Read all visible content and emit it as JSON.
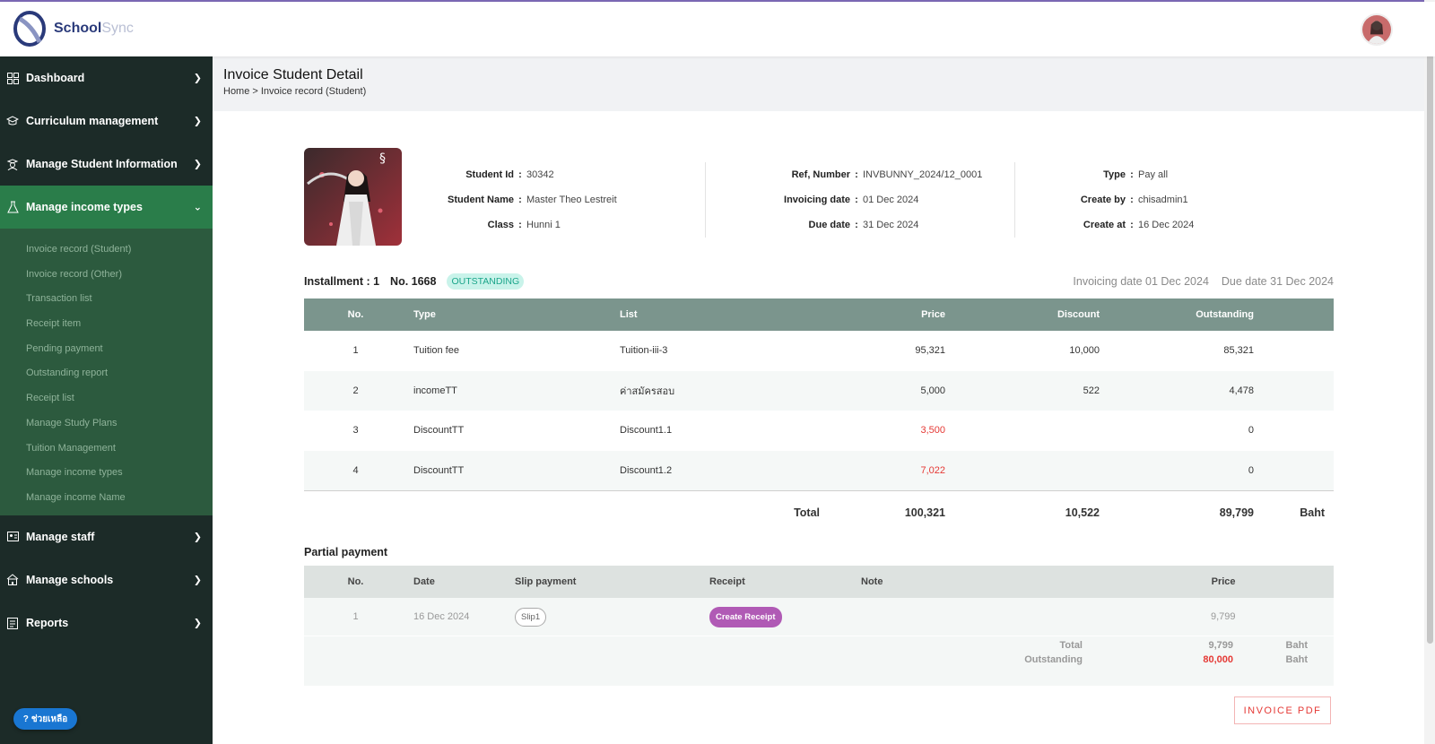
{
  "app": {
    "brand_primary": "School",
    "brand_secondary": "Sync"
  },
  "colors": {
    "sidebar_bg": "#1c2b28",
    "sidebar_active": "#2a7d4a",
    "table_header": "#7b958d",
    "badge": "#1aa58a",
    "danger": "#e53935",
    "receipt_button": "#b05ab5"
  },
  "sidebar": {
    "items_top": [
      {
        "label": "Dashboard",
        "icon": "grid-icon"
      },
      {
        "label": "Curriculum management",
        "icon": "graduation-cap-icon"
      },
      {
        "label": "Manage Student Information",
        "icon": "student-icon"
      },
      {
        "label": "Manage income types",
        "icon": "flask-icon"
      }
    ],
    "submenu": [
      "Invoice record (Student)",
      "Invoice record (Other)",
      "Transaction list",
      "Receipt item",
      "Pending payment",
      "Outstanding report",
      "Receipt list",
      "Manage Study Plans",
      "Tuition Management",
      "Manage income types",
      "Manage income Name"
    ],
    "items_bottom": [
      {
        "label": "Manage staff",
        "icon": "staff-icon"
      },
      {
        "label": "Manage schools",
        "icon": "school-icon"
      },
      {
        "label": "Reports",
        "icon": "report-icon"
      }
    ],
    "help_label": "ช่วยเหลือ"
  },
  "page": {
    "title": "Invoice Student Detail",
    "breadcrumb": "Home > Invoice record (Student)"
  },
  "student": {
    "col1": [
      {
        "label": "Student Id",
        "value": "30342"
      },
      {
        "label": "Student Name",
        "value": "Master Theo Lestreit"
      },
      {
        "label": "Class",
        "value": "Hunni 1"
      }
    ],
    "col2": [
      {
        "label": "Ref, Number",
        "value": "INVBUNNY_2024/12_0001"
      },
      {
        "label": "Invoicing date",
        "value": "01 Dec 2024"
      },
      {
        "label": "Due date",
        "value": "31 Dec 2024"
      }
    ],
    "col3": [
      {
        "label": "Type",
        "value": "Pay all"
      },
      {
        "label": "Create by",
        "value": "chisadmin1"
      },
      {
        "label": "Create at",
        "value": "16 Dec 2024"
      }
    ]
  },
  "installment": {
    "label": "Installment : 1",
    "number": "No. 1668",
    "status": "OUTSTANDING",
    "invoicing_date": "Invoicing date 01 Dec 2024",
    "due_date": "Due date 31 Dec 2024"
  },
  "invoice_table": {
    "headers": {
      "no": "No.",
      "type": "Type",
      "list": "List",
      "price": "Price",
      "discount": "Discount",
      "outstanding": "Outstanding"
    },
    "rows": [
      {
        "no": "1",
        "type": "Tuition fee",
        "list": "Tuition-iii-3",
        "price": "95,321",
        "discount": "10,000",
        "outstanding": "85,321",
        "price_red": false
      },
      {
        "no": "2",
        "type": "incomeTT",
        "list": "ค่าสมัครสอบ",
        "price": "5,000",
        "discount": "522",
        "outstanding": "4,478",
        "price_red": false
      },
      {
        "no": "3",
        "type": "DiscountTT",
        "list": "Discount1.1",
        "price": "3,500",
        "discount": "",
        "outstanding": "0",
        "price_red": true
      },
      {
        "no": "4",
        "type": "DiscountTT",
        "list": "Discount1.2",
        "price": "7,022",
        "discount": "",
        "outstanding": "0",
        "price_red": true
      }
    ],
    "total": {
      "label": "Total",
      "price": "100,321",
      "discount": "10,522",
      "outstanding": "89,799",
      "unit": "Baht"
    }
  },
  "partial": {
    "title": "Partial payment",
    "headers": {
      "no": "No.",
      "date": "Date",
      "slip": "Slip payment",
      "receipt": "Receipt",
      "note": "Note",
      "price": "Price"
    },
    "rows": [
      {
        "no": "1",
        "date": "16 Dec 2024",
        "slip": "Slip1",
        "receipt": "Create Receipt",
        "note": "",
        "price": "9,799"
      }
    ],
    "total_label": "Total",
    "total_value": "9,799",
    "total_unit": "Baht",
    "outstanding_label": "Outstanding",
    "outstanding_value": "80,000",
    "outstanding_unit": "Baht"
  },
  "actions": {
    "invoice_pdf": "INVOICE PDF"
  }
}
